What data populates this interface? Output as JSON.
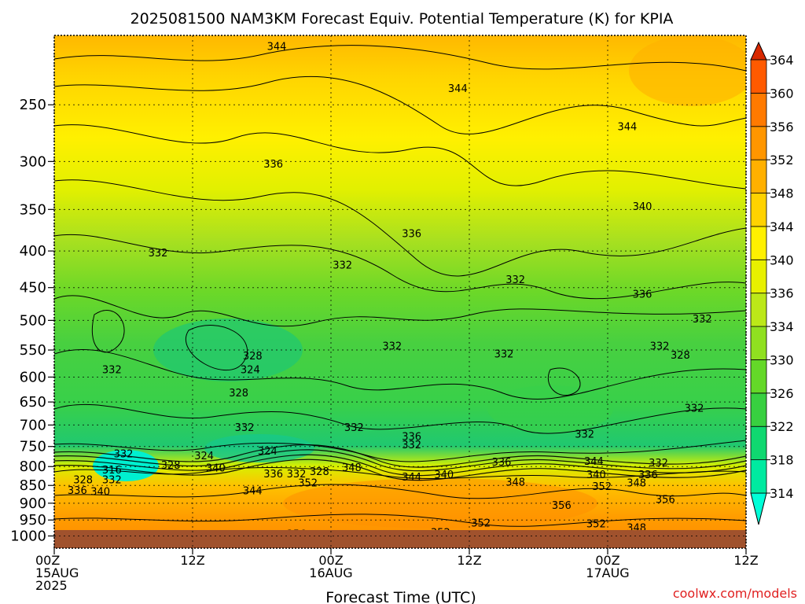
{
  "chart_data": {
    "type": "heatmap",
    "title": "2025081500 NAM3KM Forecast Equiv. Potential Temperature (K) for KPIA",
    "xlabel": "Forecast Time (UTC)",
    "ylabel": "",
    "credit": "coolwx.com/models",
    "y_scale": "log",
    "y_range": [
      200,
      1040
    ],
    "y_ticks": [
      250,
      300,
      350,
      400,
      450,
      500,
      550,
      600,
      650,
      700,
      750,
      800,
      850,
      900,
      950,
      1000
    ],
    "x_range_hours": [
      0,
      60
    ],
    "x_ticks": [
      {
        "hour": 0,
        "lines": [
          "00Z",
          "15AUG",
          "2025"
        ]
      },
      {
        "hour": 12,
        "lines": [
          "12Z"
        ]
      },
      {
        "hour": 24,
        "lines": [
          "00Z",
          "16AUG"
        ]
      },
      {
        "hour": 36,
        "lines": [
          "12Z"
        ]
      },
      {
        "hour": 48,
        "lines": [
          "00Z",
          "17AUG"
        ]
      },
      {
        "hour": 60,
        "lines": [
          "12Z"
        ]
      }
    ],
    "colorbar": {
      "levels": [
        314,
        318,
        322,
        326,
        330,
        334,
        336,
        340,
        344,
        348,
        352,
        356,
        360,
        364
      ],
      "colors": [
        "#00ffd8",
        "#00eaa0",
        "#10d870",
        "#38d040",
        "#64d828",
        "#90e020",
        "#bce818",
        "#e8f000",
        "#fff000",
        "#ffd200",
        "#ffb000",
        "#ff9600",
        "#ff7a00",
        "#ff5a00",
        "#d82800"
      ]
    },
    "contour_labels": [
      {
        "text": "344",
        "hour": 19.3,
        "p": 207
      },
      {
        "text": "344",
        "hour": 35.0,
        "p": 237
      },
      {
        "text": "344",
        "hour": 49.7,
        "p": 268
      },
      {
        "text": "336",
        "hour": 19.0,
        "p": 302
      },
      {
        "text": "340",
        "hour": 51.0,
        "p": 346
      },
      {
        "text": "336",
        "hour": 31.0,
        "p": 378
      },
      {
        "text": "332",
        "hour": 9.0,
        "p": 402
      },
      {
        "text": "332",
        "hour": 25.0,
        "p": 418
      },
      {
        "text": "332",
        "hour": 40.0,
        "p": 438
      },
      {
        "text": "336",
        "hour": 51.0,
        "p": 459
      },
      {
        "text": "332",
        "hour": 56.2,
        "p": 497
      },
      {
        "text": "332",
        "hour": 29.3,
        "p": 542
      },
      {
        "text": "332",
        "hour": 39.0,
        "p": 556
      },
      {
        "text": "332",
        "hour": 52.5,
        "p": 542
      },
      {
        "text": "328",
        "hour": 54.3,
        "p": 558
      },
      {
        "text": "328",
        "hour": 17.2,
        "p": 560
      },
      {
        "text": "324",
        "hour": 17.0,
        "p": 585
      },
      {
        "text": "332",
        "hour": 5.0,
        "p": 585
      },
      {
        "text": "328",
        "hour": 16.0,
        "p": 630
      },
      {
        "text": "332",
        "hour": 55.5,
        "p": 662
      },
      {
        "text": "332",
        "hour": 16.5,
        "p": 705
      },
      {
        "text": "332",
        "hour": 26.0,
        "p": 705
      },
      {
        "text": "336",
        "hour": 31.0,
        "p": 725
      },
      {
        "text": "332",
        "hour": 31.0,
        "p": 745
      },
      {
        "text": "332",
        "hour": 46.0,
        "p": 720
      },
      {
        "text": "324",
        "hour": 18.5,
        "p": 760
      },
      {
        "text": "332",
        "hour": 6.0,
        "p": 767
      },
      {
        "text": "324",
        "hour": 13.0,
        "p": 772
      },
      {
        "text": "336",
        "hour": 38.8,
        "p": 787
      },
      {
        "text": "344",
        "hour": 46.8,
        "p": 785
      },
      {
        "text": "332",
        "hour": 52.4,
        "p": 789
      },
      {
        "text": "328",
        "hour": 10.1,
        "p": 795
      },
      {
        "text": "340",
        "hour": 14.0,
        "p": 803
      },
      {
        "text": "316",
        "hour": 5.0,
        "p": 808
      },
      {
        "text": "336",
        "hour": 19.0,
        "p": 818
      },
      {
        "text": "332",
        "hour": 21.0,
        "p": 818
      },
      {
        "text": "328",
        "hour": 23.0,
        "p": 812
      },
      {
        "text": "348",
        "hour": 25.8,
        "p": 802
      },
      {
        "text": "340",
        "hour": 33.8,
        "p": 820
      },
      {
        "text": "344",
        "hour": 31.0,
        "p": 826
      },
      {
        "text": "340",
        "hour": 47.0,
        "p": 820
      },
      {
        "text": "336",
        "hour": 51.5,
        "p": 820
      },
      {
        "text": "328",
        "hour": 2.5,
        "p": 834
      },
      {
        "text": "332",
        "hour": 5.0,
        "p": 834
      },
      {
        "text": "352",
        "hour": 22.0,
        "p": 842
      },
      {
        "text": "348",
        "hour": 40.0,
        "p": 840
      },
      {
        "text": "352",
        "hour": 47.5,
        "p": 852
      },
      {
        "text": "348",
        "hour": 50.5,
        "p": 842
      },
      {
        "text": "336",
        "hour": 2.0,
        "p": 862
      },
      {
        "text": "340",
        "hour": 4.0,
        "p": 866
      },
      {
        "text": "344",
        "hour": 17.2,
        "p": 864
      },
      {
        "text": "356",
        "hour": 53.0,
        "p": 888
      },
      {
        "text": "356",
        "hour": 44.0,
        "p": 905
      },
      {
        "text": "352",
        "hour": 37.0,
        "p": 958
      },
      {
        "text": "352",
        "hour": 47.0,
        "p": 960
      },
      {
        "text": "348",
        "hour": 50.5,
        "p": 973
      },
      {
        "text": "356",
        "hour": 21.0,
        "p": 992
      },
      {
        "text": "352",
        "hour": 33.5,
        "p": 987
      }
    ]
  }
}
